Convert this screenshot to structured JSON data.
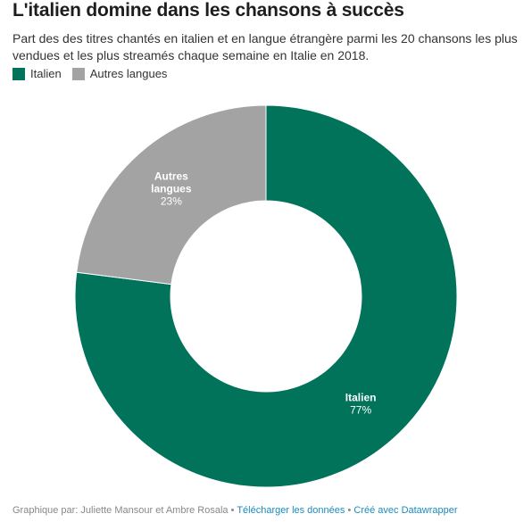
{
  "title": "L'italien domine dans les chansons à succès",
  "subtitle": "Part des des titres chantés en italien et en langue étrangère parmi les 20 chansons les plus vendues et les plus streamés chaque semaine en Italie en 2018.",
  "legend": [
    {
      "label": "Italien",
      "color": "#00735a"
    },
    {
      "label": "Autres langues",
      "color": "#a3a3a3"
    }
  ],
  "chart_data": {
    "type": "pie",
    "donut": true,
    "start": "top",
    "direction": "clockwise",
    "slices": [
      {
        "label_lines": [
          "Italien"
        ],
        "value": 77,
        "value_label": "77%",
        "color": "#00735a"
      },
      {
        "label_lines": [
          "Autres",
          "langues"
        ],
        "value": 23,
        "value_label": "23%",
        "color": "#a3a3a3"
      }
    ]
  },
  "footer": {
    "credit": "Graphique par: Juliette Mansour et Ambre Rosala",
    "separator": "•",
    "download_link": "Télécharger les données",
    "made_with_link": "Créé avec Datawrapper"
  }
}
